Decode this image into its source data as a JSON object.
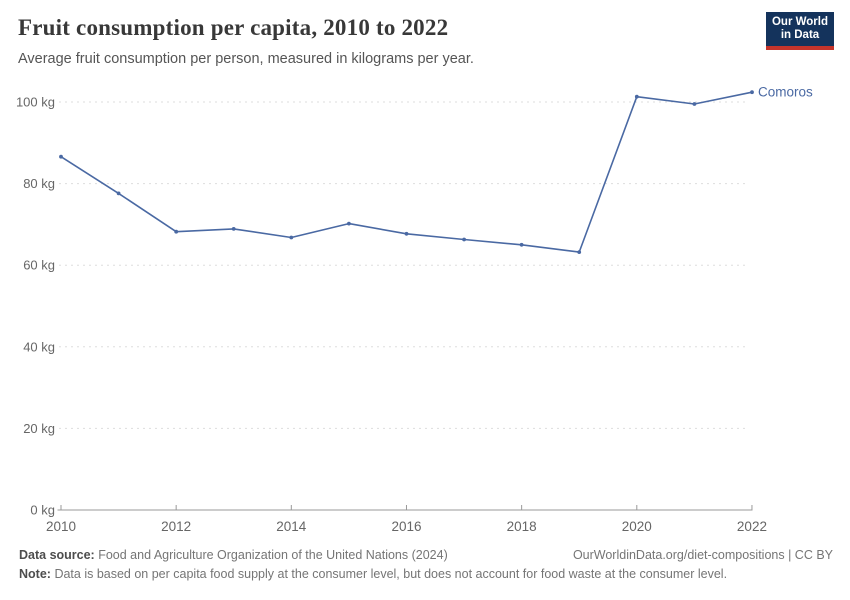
{
  "header": {
    "logo": {
      "line1": "Our World",
      "line2": "in Data",
      "bg_color": "#14335c",
      "accent_color": "#c5342b"
    }
  },
  "chart_data": {
    "type": "line",
    "title": "Fruit consumption per capita, 2010 to 2022",
    "subtitle": "Average fruit consumption per person, measured in kilograms per year.",
    "x": [
      2010,
      2011,
      2012,
      2013,
      2014,
      2015,
      2016,
      2017,
      2018,
      2019,
      2020,
      2021,
      2022
    ],
    "series": [
      {
        "name": "Comoros",
        "color": "#4a69a3",
        "values": [
          86.6,
          77.6,
          68.2,
          68.9,
          66.8,
          70.2,
          67.7,
          66.3,
          65.0,
          63.2,
          101.3,
          99.5,
          102.4
        ]
      }
    ],
    "unit": "kg",
    "ylim": [
      0,
      100
    ],
    "yticks": [
      0,
      20,
      40,
      60,
      80,
      100
    ],
    "xticks": [
      2010,
      2012,
      2014,
      2016,
      2018,
      2020,
      2022
    ],
    "grid": true,
    "legend_position": "end-of-line-label",
    "grid_color": "#dddddd",
    "axis_color": "#999999",
    "tick_label_color": "#666666"
  },
  "footer": {
    "source_label": "Data source:",
    "source_text": "Food and Agriculture Organization of the United Nations (2024)",
    "link_text": "OurWorldinData.org/diet-compositions | CC BY",
    "note_label": "Note:",
    "note_text": "Data is based on per capita food supply at the consumer level, but does not account for food waste at the consumer level."
  }
}
